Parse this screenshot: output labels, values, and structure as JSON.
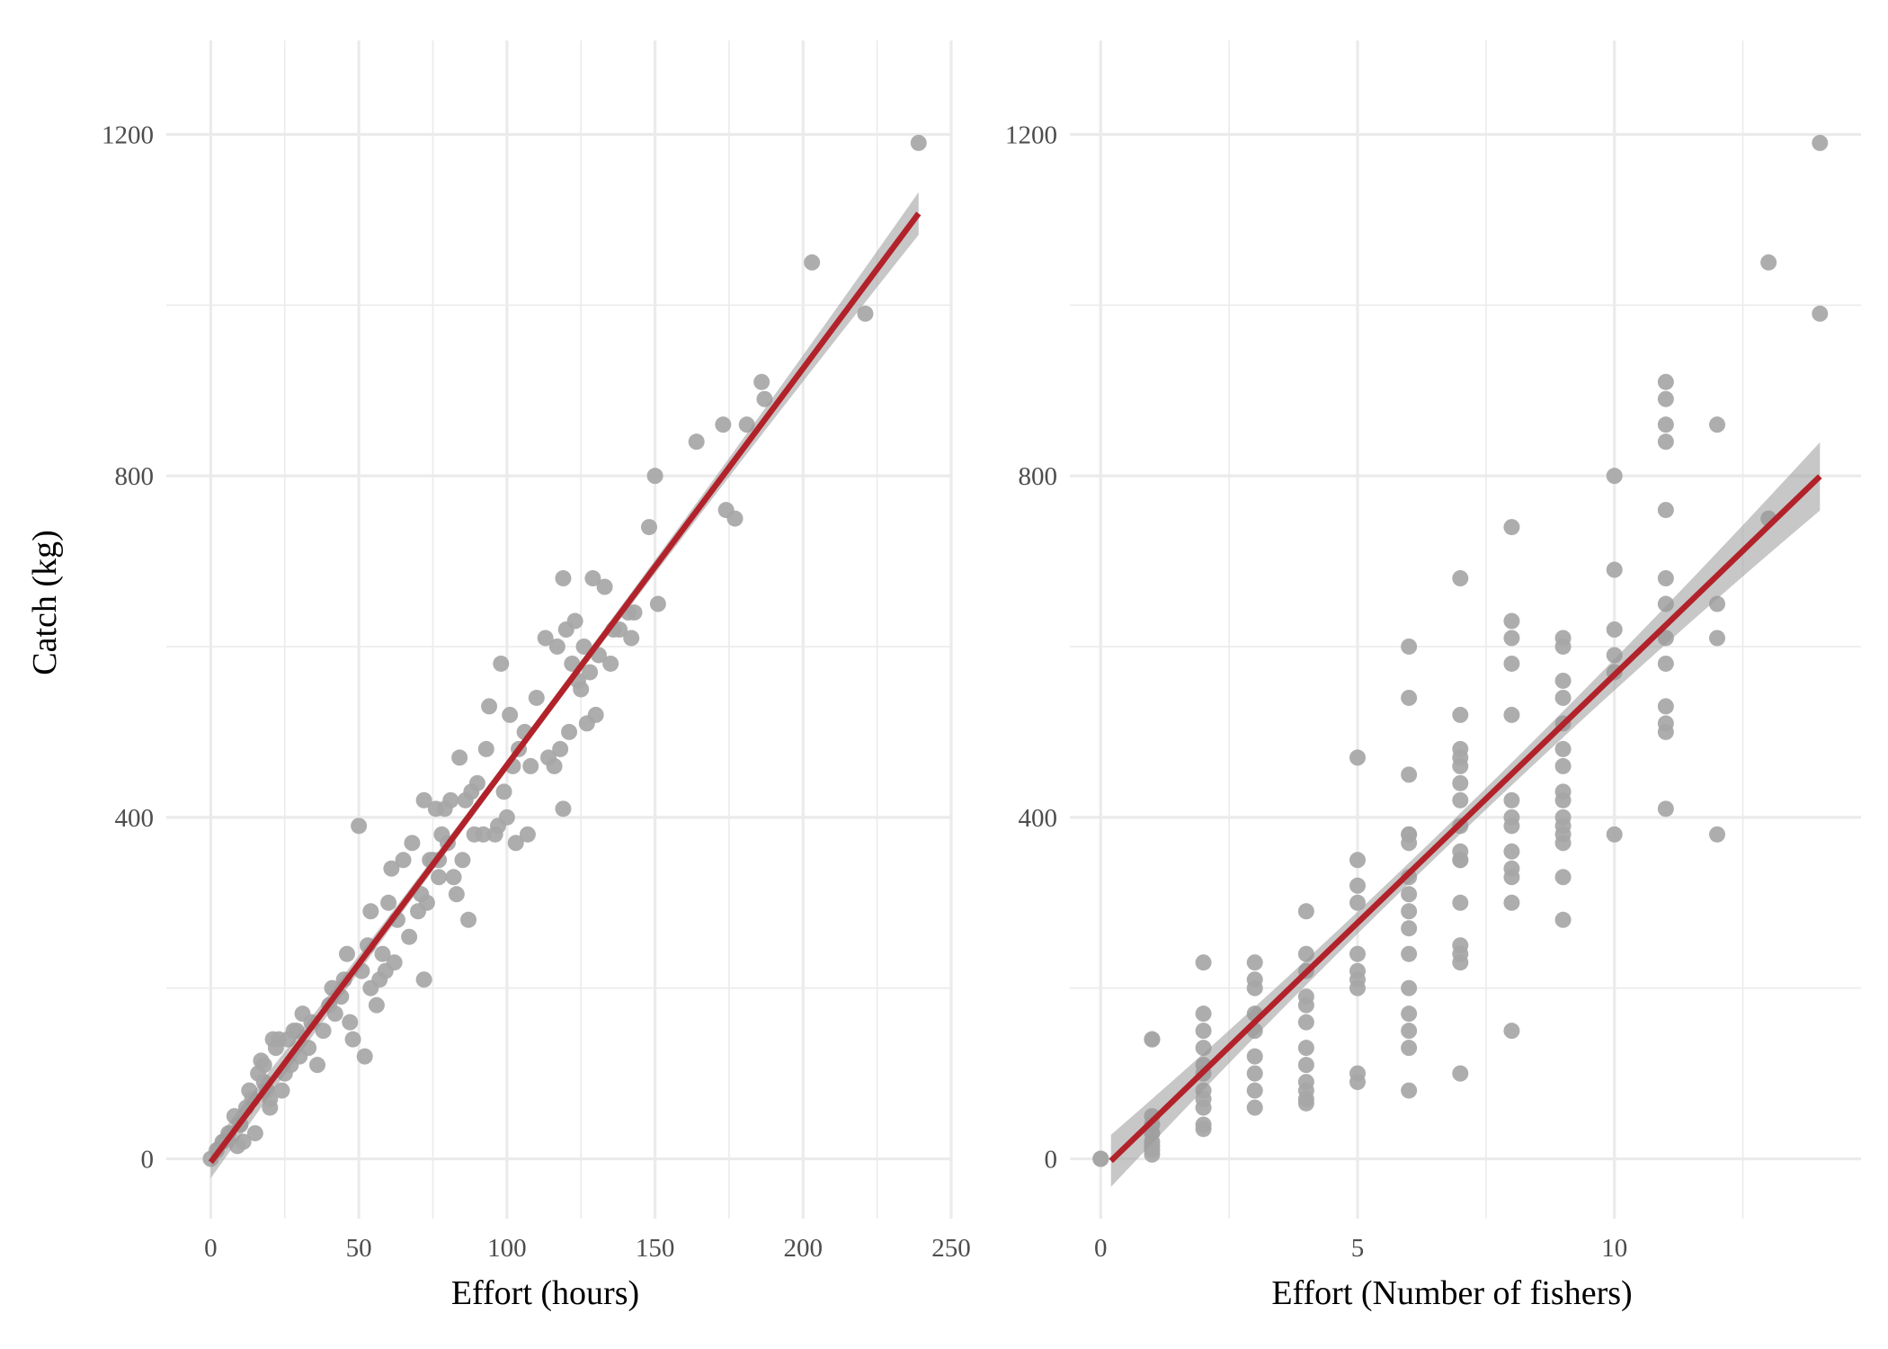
{
  "colors": {
    "points": "#a6a6a6",
    "fit_line": "#b2222a",
    "confidence_band": "#999999",
    "grid": "#ebebeb",
    "tick_text": "#4d4d4d",
    "axis_title_text": "#000000"
  },
  "chart_data": [
    {
      "type": "scatter",
      "title": "",
      "xlabel": "Effort (hours)",
      "ylabel": "Catch (kg)",
      "xlim": [
        -15,
        250
      ],
      "ylim": [
        -70,
        1310
      ],
      "x_ticks": [
        0,
        50,
        100,
        150,
        200,
        250
      ],
      "y_ticks": [
        0,
        400,
        800,
        1200
      ],
      "grid": true,
      "legend": "none",
      "trend": {
        "method": "linear regression with confidence band",
        "intercept": -4,
        "slope": 4.65,
        "x_range": [
          0,
          239
        ],
        "band_halfwidth": [
          6,
          25
        ]
      },
      "x": [
        0,
        2,
        4,
        6,
        8,
        9,
        10,
        11,
        12,
        13,
        14,
        15,
        16,
        17,
        18,
        18,
        19,
        20,
        20,
        21,
        22,
        23,
        24,
        25,
        26,
        27,
        28,
        29,
        30,
        31,
        33,
        34,
        36,
        38,
        40,
        41,
        42,
        44,
        45,
        46,
        47,
        48,
        50,
        51,
        52,
        53,
        54,
        54,
        56,
        57,
        58,
        59,
        60,
        61,
        62,
        63,
        65,
        67,
        68,
        70,
        71,
        72,
        72,
        73,
        74,
        75,
        76,
        77,
        77,
        78,
        79,
        80,
        81,
        82,
        83,
        84,
        85,
        86,
        87,
        88,
        89,
        90,
        92,
        93,
        94,
        96,
        97,
        98,
        99,
        100,
        101,
        102,
        103,
        104,
        106,
        107,
        108,
        110,
        113,
        114,
        116,
        117,
        118,
        119,
        119,
        120,
        121,
        122,
        123,
        124,
        125,
        126,
        127,
        128,
        129,
        130,
        131,
        133,
        135,
        136,
        138,
        141,
        142,
        143,
        148,
        150,
        151,
        164,
        173,
        174,
        177,
        181,
        186,
        187,
        203,
        221,
        239
      ],
      "y": [
        0,
        10,
        20,
        30,
        50,
        15,
        40,
        20,
        60,
        80,
        70,
        30,
        100,
        115,
        90,
        110,
        80,
        60,
        70,
        140,
        130,
        140,
        80,
        100,
        140,
        110,
        150,
        150,
        120,
        170,
        130,
        160,
        110,
        150,
        180,
        200,
        170,
        190,
        210,
        240,
        160,
        140,
        390,
        220,
        120,
        250,
        290,
        200,
        180,
        210,
        240,
        220,
        300,
        340,
        230,
        280,
        350,
        260,
        370,
        290,
        310,
        420,
        210,
        300,
        350,
        350,
        410,
        330,
        350,
        380,
        410,
        370,
        420,
        330,
        310,
        470,
        350,
        420,
        280,
        430,
        380,
        440,
        380,
        480,
        530,
        380,
        390,
        580,
        430,
        400,
        520,
        460,
        370,
        480,
        500,
        380,
        460,
        540,
        610,
        470,
        460,
        600,
        480,
        410,
        680,
        620,
        500,
        580,
        630,
        560,
        550,
        600,
        510,
        570,
        680,
        520,
        590,
        670,
        580,
        620,
        620,
        640,
        610,
        640,
        740,
        800,
        650,
        840,
        860,
        760,
        750,
        860,
        910,
        890,
        1050,
        990,
        1190
      ]
    },
    {
      "type": "scatter",
      "title": "",
      "xlabel": "Effort (Number of fishers)",
      "ylabel": "",
      "xlim": [
        -0.6,
        14.8
      ],
      "ylim": [
        -70,
        1310
      ],
      "x_ticks": [
        0,
        5,
        10
      ],
      "y_ticks": [
        0,
        400,
        800,
        1200
      ],
      "grid": true,
      "legend": "none",
      "trend": {
        "method": "linear regression with confidence band",
        "intercept": -14,
        "slope": 58.1,
        "x_range": [
          0.2,
          14
        ],
        "band_halfwidth": [
          12,
          40
        ]
      },
      "x": [
        0,
        0,
        0,
        1,
        1,
        1,
        1,
        1,
        1,
        1,
        1,
        1,
        2,
        2,
        2,
        2,
        2,
        2,
        2,
        2,
        2,
        2,
        2,
        3,
        3,
        3,
        3,
        3,
        3,
        3,
        3,
        3,
        4,
        4,
        4,
        4,
        4,
        4,
        4,
        4,
        4,
        4,
        4,
        4,
        5,
        5,
        5,
        5,
        5,
        5,
        5,
        5,
        5,
        5,
        6,
        6,
        6,
        6,
        6,
        6,
        6,
        6,
        6,
        6,
        6,
        6,
        6,
        6,
        6,
        6,
        7,
        7,
        7,
        7,
        7,
        7,
        7,
        7,
        7,
        7,
        7,
        7,
        7,
        7,
        7,
        7,
        8,
        8,
        8,
        8,
        8,
        8,
        8,
        8,
        8,
        8,
        8,
        8,
        8,
        9,
        9,
        9,
        9,
        9,
        9,
        9,
        9,
        9,
        9,
        9,
        9,
        9,
        9,
        9,
        10,
        10,
        10,
        10,
        10,
        10,
        11,
        11,
        11,
        11,
        11,
        11,
        11,
        11,
        11,
        11,
        11,
        11,
        11,
        12,
        12,
        12,
        12,
        13,
        13,
        14,
        14
      ],
      "y": [
        0,
        0,
        0,
        140,
        50,
        40,
        30,
        20,
        15,
        10,
        5,
        140,
        230,
        170,
        150,
        130,
        110,
        100,
        80,
        70,
        60,
        40,
        35,
        230,
        210,
        200,
        170,
        150,
        120,
        100,
        80,
        60,
        290,
        240,
        190,
        180,
        160,
        130,
        110,
        90,
        80,
        70,
        65,
        220,
        470,
        350,
        320,
        300,
        240,
        220,
        210,
        200,
        100,
        90,
        600,
        540,
        450,
        380,
        370,
        310,
        290,
        270,
        240,
        200,
        170,
        150,
        130,
        80,
        380,
        330,
        680,
        520,
        480,
        470,
        460,
        440,
        420,
        350,
        300,
        250,
        240,
        230,
        100,
        390,
        360,
        350,
        740,
        630,
        610,
        580,
        520,
        420,
        400,
        390,
        360,
        340,
        330,
        300,
        150,
        610,
        600,
        560,
        540,
        510,
        480,
        460,
        430,
        420,
        400,
        390,
        380,
        370,
        330,
        280,
        800,
        690,
        620,
        590,
        570,
        380,
        910,
        890,
        860,
        840,
        760,
        680,
        650,
        610,
        580,
        530,
        510,
        500,
        410,
        860,
        650,
        610,
        380,
        1050,
        750,
        1190,
        990
      ]
    }
  ]
}
